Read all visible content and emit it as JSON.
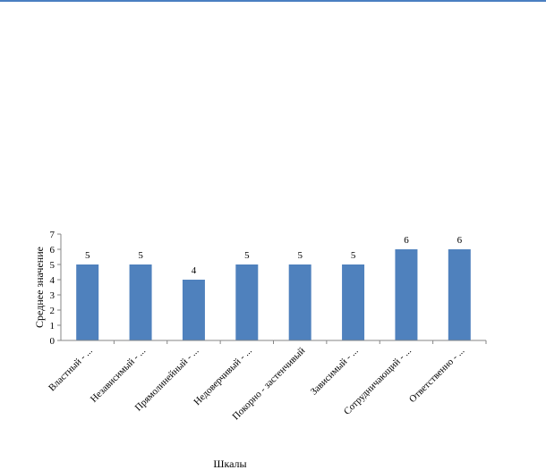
{
  "colors": {
    "bar": "#4F81BD",
    "axis": "#868686",
    "top_rule": "#4A7FC1"
  },
  "chart_data": {
    "type": "bar",
    "categories": [
      "Властный - ...",
      "Независимый - ...",
      "Прямолинейный - ...",
      "Недоверчивый - ...",
      "Покорно - застенчивый",
      "Зависимый - ...",
      "Сотрудничающий - ...",
      "Ответственно - ..."
    ],
    "values": [
      5,
      5,
      4,
      5,
      5,
      5,
      6,
      6
    ],
    "data_labels": [
      "5",
      "5",
      "4",
      "5",
      "5",
      "5",
      "6",
      "6"
    ],
    "xlabel": "Шкалы",
    "ylabel": "Среднее значение",
    "ylim": [
      0,
      7
    ],
    "yticks": [
      0,
      1,
      2,
      3,
      4,
      5,
      6,
      7
    ],
    "grid": false,
    "legend": "none"
  }
}
